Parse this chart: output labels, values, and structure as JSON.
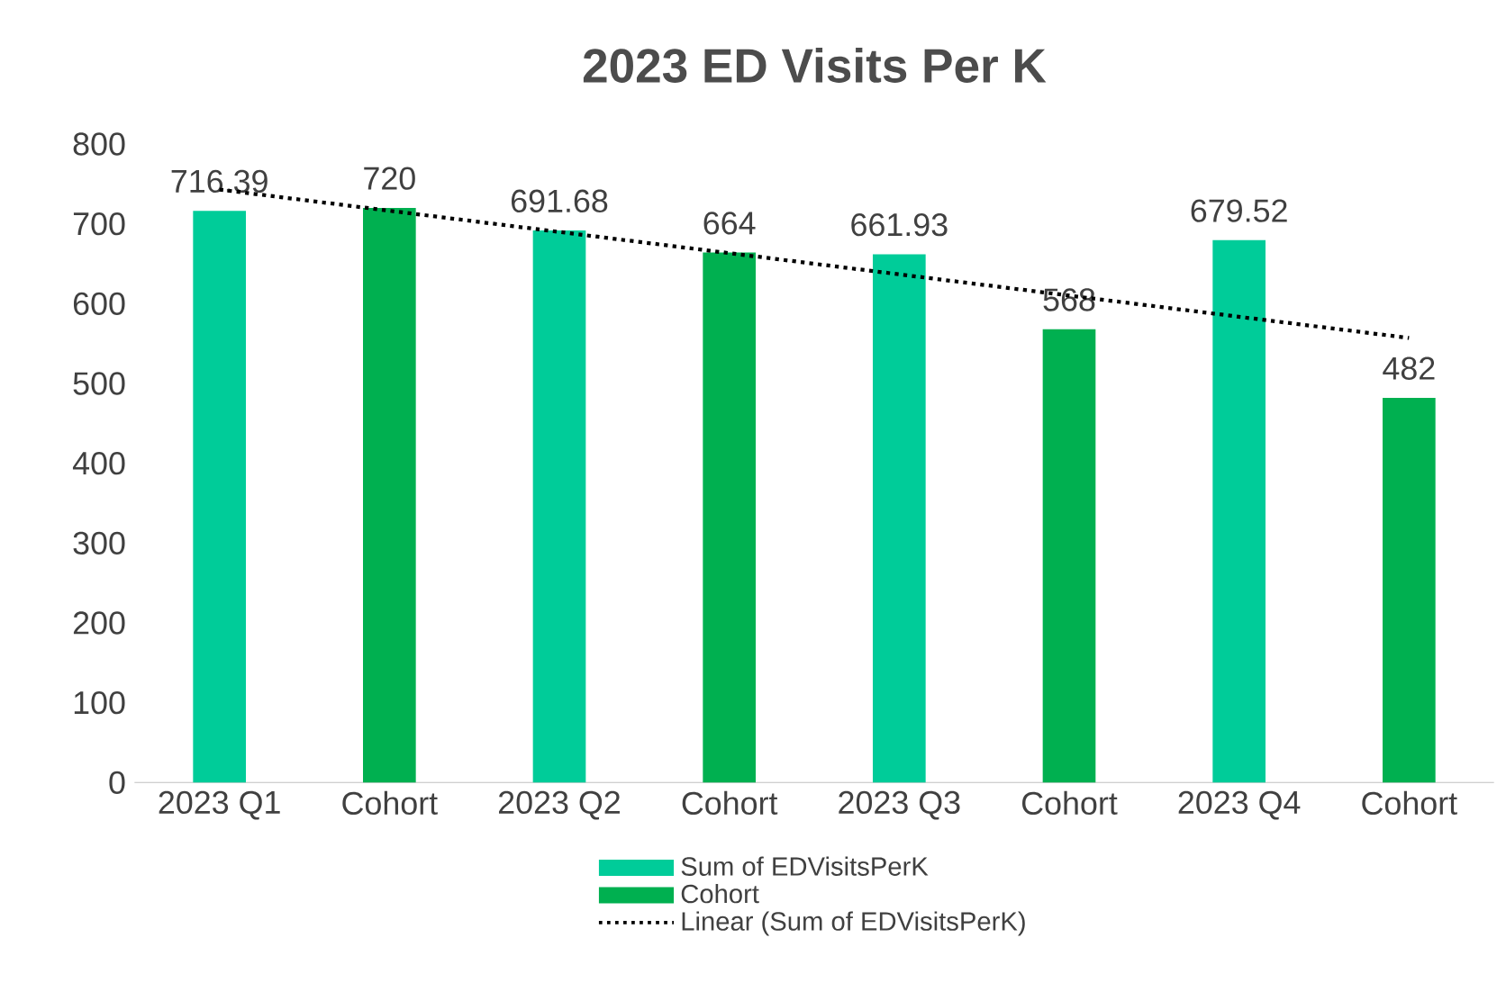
{
  "chart_data": {
    "type": "bar",
    "title": "2023 ED Visits Per K",
    "categories": [
      "2023 Q1",
      "Cohort",
      "2023 Q2",
      "Cohort",
      "2023 Q3",
      "Cohort",
      "2023 Q4",
      "Cohort"
    ],
    "series": [
      {
        "name": "Sum of EDVisitsPerK",
        "color": "#00cc99",
        "values": [
          716.39,
          null,
          691.68,
          null,
          661.93,
          null,
          679.52,
          null
        ],
        "value_labels": [
          "716.39",
          null,
          "691.68",
          null,
          "661.93",
          null,
          "679.52",
          null
        ]
      },
      {
        "name": "Cohort",
        "color": "#00b050",
        "values": [
          null,
          720,
          null,
          664,
          null,
          568,
          null,
          482
        ],
        "value_labels": [
          null,
          "720",
          null,
          "664",
          null,
          "568",
          null,
          "482"
        ]
      },
      {
        "name": "Linear (Sum of EDVisitsPerK)",
        "type": "line",
        "color": "#000000",
        "line_style": "dotted",
        "marker": "none",
        "values": [
          743,
          null,
          null,
          null,
          null,
          null,
          null,
          557
        ]
      }
    ],
    "ylim": [
      0,
      800
    ],
    "yticks": [
      0,
      100,
      200,
      300,
      400,
      500,
      600,
      700,
      800
    ],
    "legend": "bottom"
  }
}
